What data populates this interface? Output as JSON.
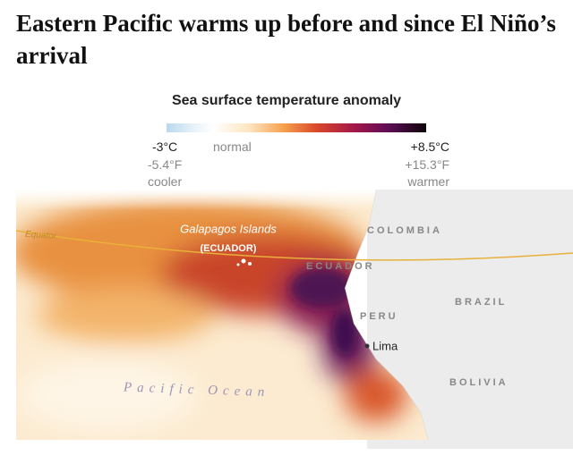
{
  "header": {
    "title": "Eastern Pacific warms up before and since El Niño’s arrival"
  },
  "legend": {
    "title": "Sea surface temperature anomaly",
    "min_c": "-3°C",
    "normal": "normal",
    "max_c": "+8.5°C",
    "min_f": "-5.4°F",
    "max_f": "+15.3°F",
    "cooler": "cooler",
    "warmer": "warmer"
  },
  "map": {
    "labels": {
      "equator": "Equator",
      "galapagos": "Galapagos Islands",
      "galapagos_country": "(ECUADOR)",
      "colombia": "COLOMBIA",
      "ecuador": "ECUADOR",
      "peru": "PERU",
      "brazil": "BRAZIL",
      "lima": "Lima",
      "bolivia": "BOLIVIA",
      "ocean": "Pacific Ocean"
    }
  }
}
